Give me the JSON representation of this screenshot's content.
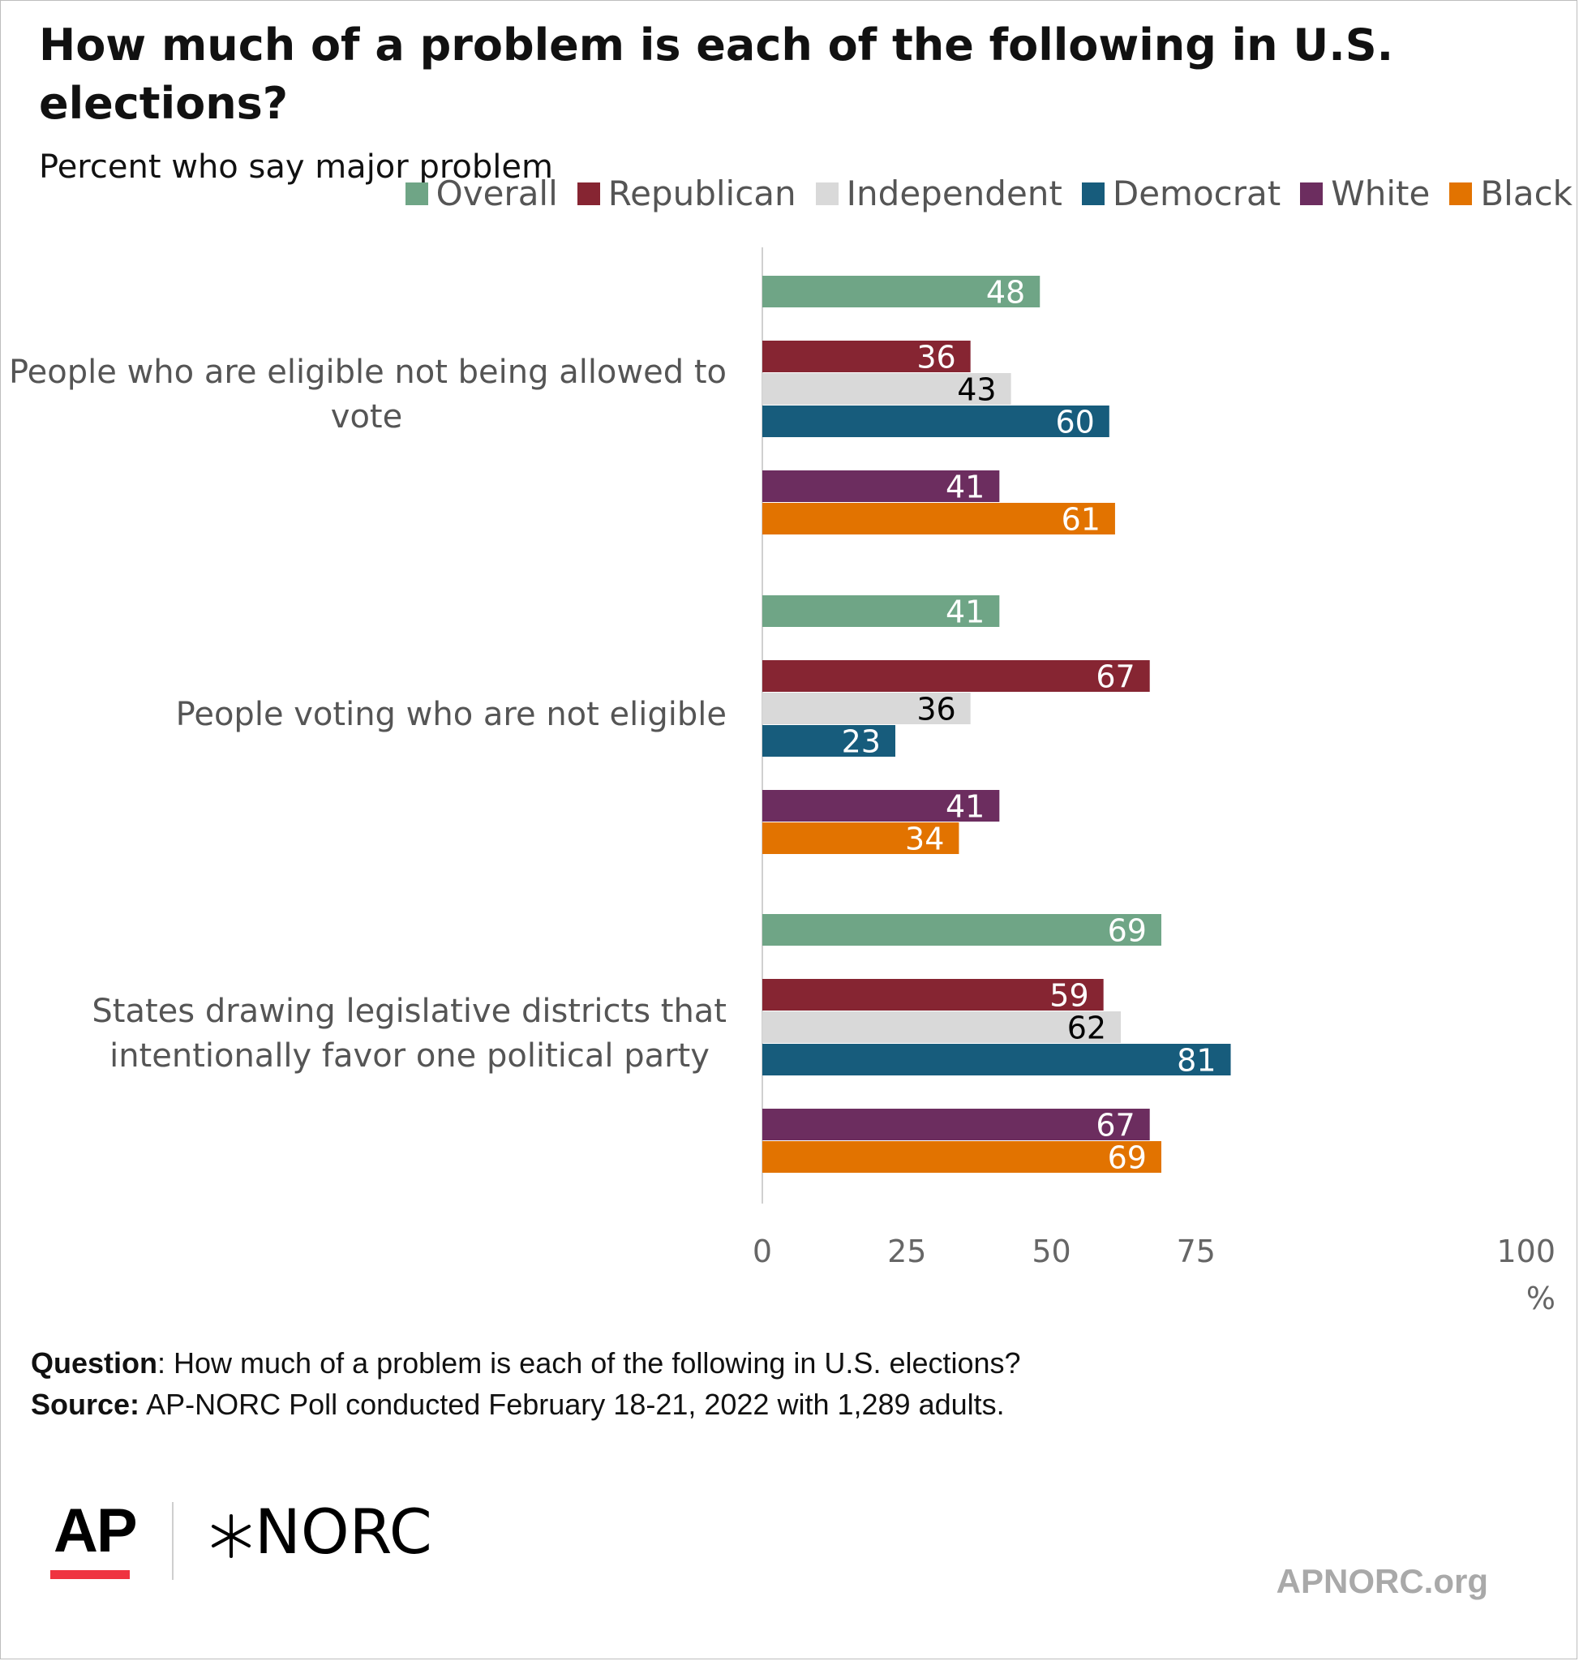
{
  "chart_data": {
    "type": "bar",
    "orientation": "horizontal",
    "title": "How much of a problem is each of the following in U.S. elections?",
    "subtitle": "Percent who say major problem",
    "categories": [
      "People who are eligible not being allowed to vote",
      "People voting who are not eligible",
      "States drawing legislative districts that intentionally favor one political party"
    ],
    "series": [
      {
        "name": "Overall",
        "color": "#6fa586",
        "label_color": "#ffffff",
        "values": [
          48,
          41,
          69
        ]
      },
      {
        "name": "Republican",
        "color": "#862532",
        "label_color": "#ffffff",
        "values": [
          36,
          67,
          59
        ]
      },
      {
        "name": "Independent",
        "color": "#d9d9d9",
        "label_color": "#000000",
        "values": [
          43,
          36,
          62
        ]
      },
      {
        "name": "Democrat",
        "color": "#175c7c",
        "label_color": "#ffffff",
        "values": [
          60,
          23,
          81
        ]
      },
      {
        "name": "White",
        "color": "#6c2d5f",
        "label_color": "#ffffff",
        "values": [
          41,
          41,
          67
        ]
      },
      {
        "name": "Black",
        "color": "#e27300",
        "label_color": "#ffffff",
        "values": [
          61,
          34,
          69
        ]
      }
    ],
    "xlim": [
      0,
      100
    ],
    "xticks": [
      "0",
      "25",
      "50",
      "75",
      "100"
    ],
    "xunit": "%",
    "legend_position": "top-right",
    "grid": false
  },
  "footer": {
    "question_label": "Question",
    "question_text": ": How much of a problem is each of the following in U.S. elections?",
    "source_label": "Source:",
    "source_text": " AP-NORC Poll conducted February 18-21, 2022 with 1,289 adults."
  },
  "branding": {
    "ap_logo": "AP",
    "norc_logo": "NORC",
    "site": "APNORC.org",
    "ap_red": "#ef3340"
  }
}
